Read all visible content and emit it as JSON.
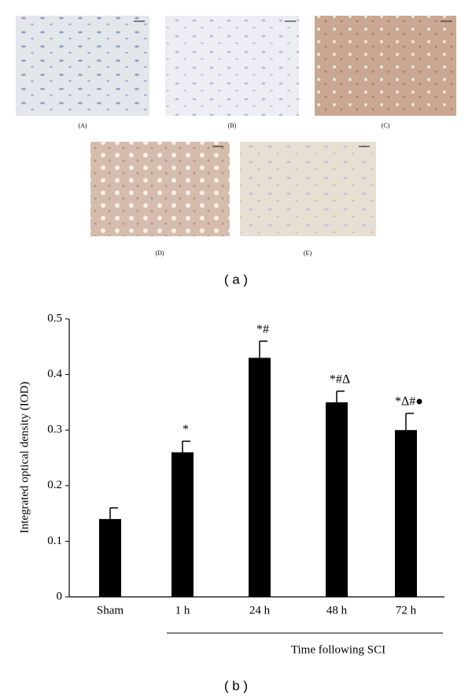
{
  "panels": [
    "(A)",
    "(B)",
    "(C)",
    "(D)",
    "(E)"
  ],
  "figure_labels": [
    "( a )",
    "( b )"
  ],
  "chart_data": {
    "type": "bar",
    "ylabel": "Integrated optical density (IOD)",
    "xlabel": "Time following SCI",
    "categories": [
      "Sham",
      "1 h",
      "24 h",
      "48 h",
      "72 h"
    ],
    "values": [
      0.14,
      0.26,
      0.43,
      0.35,
      0.3
    ],
    "errors": [
      0.02,
      0.02,
      0.03,
      0.02,
      0.03
    ],
    "annotations": [
      null,
      "*",
      "*#",
      "*#Δ",
      "*Δ#●"
    ],
    "color": "#000000",
    "ylim": [
      0,
      0.5
    ],
    "yticks": [
      0,
      0.1,
      0.2,
      0.3,
      0.4,
      0.5
    ],
    "grid": false
  }
}
